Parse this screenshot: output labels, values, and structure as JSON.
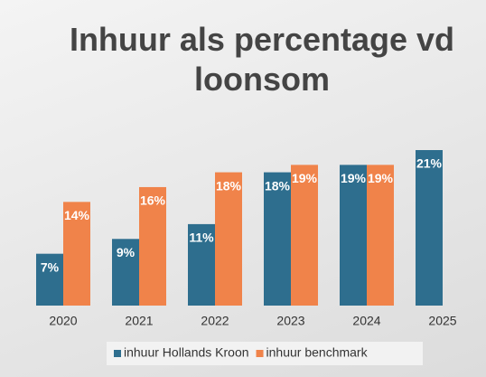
{
  "chart_data": {
    "type": "bar",
    "title": "Inhuur als percentage vd loonsom",
    "categories": [
      "2020",
      "2021",
      "2022",
      "2023",
      "2024",
      "2025"
    ],
    "series": [
      {
        "name": "inhuur Hollands Kroon",
        "color": "#2e6e8e",
        "values": [
          7,
          9,
          11,
          18,
          19,
          21
        ],
        "value_labels": [
          "7%",
          "9%",
          "11%",
          "18%",
          "19%",
          "21%"
        ]
      },
      {
        "name": "inhuur benchmark",
        "color": "#f0834a",
        "values": [
          14,
          16,
          18,
          19,
          19,
          null
        ],
        "value_labels": [
          "14%",
          "16%",
          "18%",
          "19%",
          "19%",
          null
        ]
      }
    ],
    "ylim": [
      0,
      21
    ],
    "legend": "bottom"
  }
}
